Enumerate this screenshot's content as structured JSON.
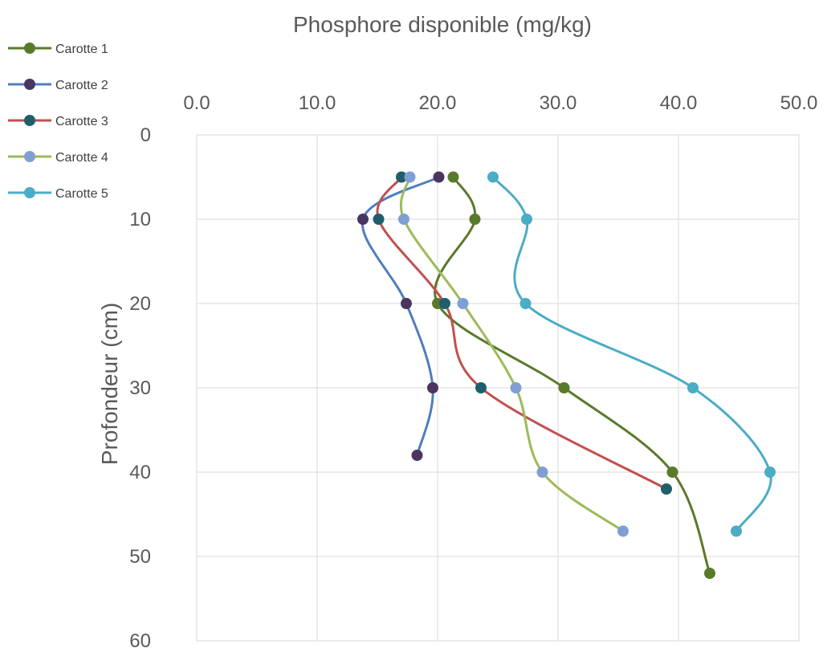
{
  "chart_data": {
    "type": "scatter",
    "title": "Phosphore disponible (mg/kg)",
    "xlabel": "Phosphore disponible (mg/kg)",
    "ylabel": "Profondeur (cm)",
    "xlim": [
      0,
      50
    ],
    "ylim": [
      0,
      60
    ],
    "y_reversed": true,
    "x_axis_position": "top",
    "x_ticks": [
      0,
      10,
      20,
      30,
      40,
      50
    ],
    "y_ticks": [
      0,
      10,
      20,
      30,
      40,
      50,
      60
    ],
    "x_tick_labels": [
      "0.0",
      "10.0",
      "20.0",
      "30.0",
      "40.0",
      "50.0"
    ],
    "y_tick_labels": [
      "0",
      "10",
      "20",
      "30",
      "40",
      "50",
      "60"
    ],
    "grid": true,
    "smooth_lines": true,
    "legend_position": "top-left",
    "series": [
      {
        "name": "Carotte 1",
        "color": "#5a7a2b",
        "points": [
          [
            21.3,
            5
          ],
          [
            23.1,
            10
          ],
          [
            20.0,
            20
          ],
          [
            30.5,
            30
          ],
          [
            39.5,
            40
          ],
          [
            42.6,
            52
          ]
        ]
      },
      {
        "name": "Carotte 2",
        "color": "#4f7dc0",
        "marker_color": "#4a3560",
        "points": [
          [
            20.1,
            5
          ],
          [
            13.8,
            10
          ],
          [
            17.4,
            20
          ],
          [
            19.6,
            30
          ],
          [
            18.3,
            38
          ]
        ]
      },
      {
        "name": "Carotte 3",
        "color": "#c0504d",
        "marker_color": "#1f5f6b",
        "points": [
          [
            17.0,
            5
          ],
          [
            15.1,
            10
          ],
          [
            20.6,
            20
          ],
          [
            23.6,
            30
          ],
          [
            39.0,
            42
          ]
        ]
      },
      {
        "name": "Carotte 4",
        "color": "#9bbb59",
        "marker_color": "#7f9fd4",
        "points": [
          [
            17.7,
            5
          ],
          [
            17.2,
            10
          ],
          [
            22.1,
            20
          ],
          [
            26.5,
            30
          ],
          [
            28.7,
            40
          ],
          [
            35.4,
            47
          ]
        ]
      },
      {
        "name": "Carotte 5",
        "color": "#4bacc6",
        "points": [
          [
            24.6,
            5
          ],
          [
            27.4,
            10
          ],
          [
            27.3,
            20
          ],
          [
            41.2,
            30
          ],
          [
            47.6,
            40
          ],
          [
            44.8,
            47
          ]
        ]
      }
    ]
  }
}
